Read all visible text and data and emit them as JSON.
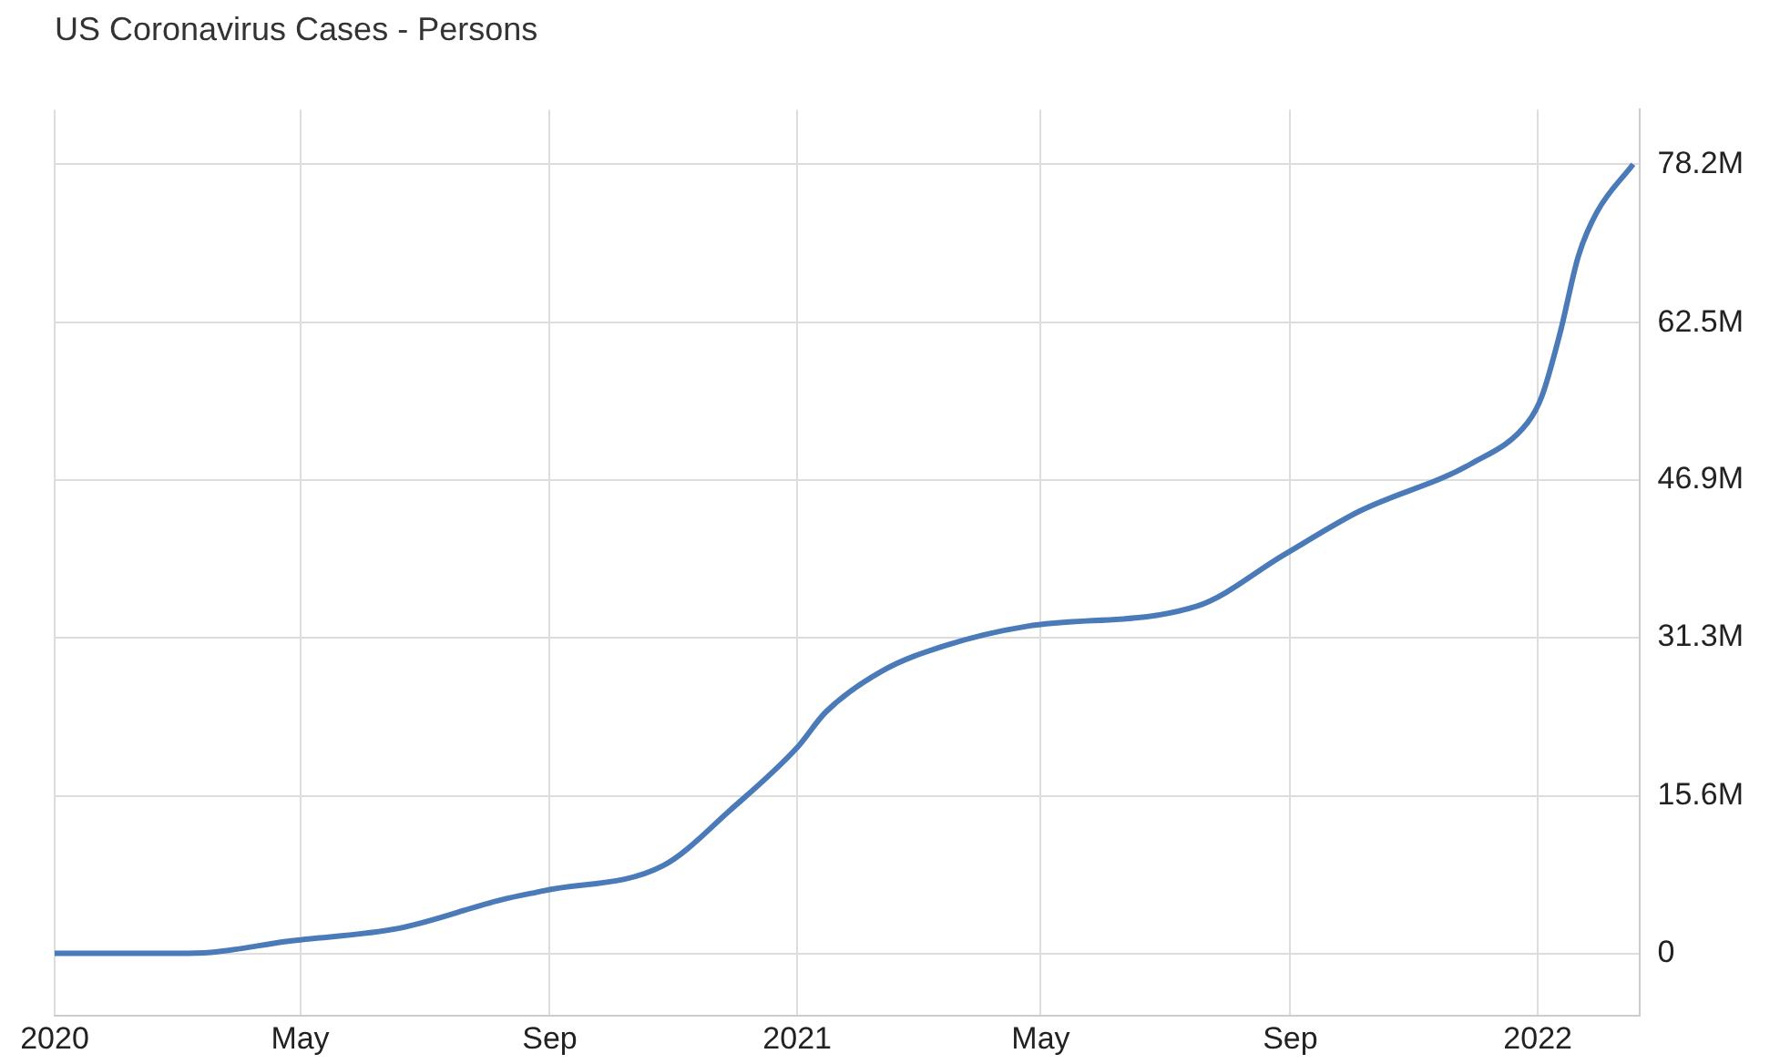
{
  "chart_data": {
    "type": "line",
    "title": "US Coronavirus Cases - Persons",
    "x": [
      "2020-01-01",
      "2020-03-01",
      "2020-03-18",
      "2020-04-25",
      "2020-06-19",
      "2020-08-08",
      "2020-08-29",
      "2020-10-27",
      "2020-11-29",
      "2021-01-01",
      "2021-01-15",
      "2021-02-12",
      "2021-03-15",
      "2021-04-24",
      "2021-07-17",
      "2021-08-29",
      "2021-10-05",
      "2021-11-29",
      "2021-12-27",
      "2022-01-03",
      "2022-01-12",
      "2022-01-21",
      "2022-01-30",
      "2022-02-17"
    ],
    "series": [
      {
        "color": "#4a7ab8",
        "values": [
          0,
          0,
          0.1,
          1.2,
          2.5,
          5.3,
          6.2,
          8.7,
          14.2,
          20.4,
          23.9,
          28.0,
          30.5,
          32.4,
          34.4,
          39.5,
          43.8,
          48.5,
          52.6,
          55.2,
          61.5,
          69.1,
          73.4,
          78.2
        ]
      }
    ],
    "xlim": [
      "2020-01-01",
      "2022-02-20"
    ],
    "xticks": [
      {
        "value": "2020-01-01",
        "label": "2020"
      },
      {
        "value": "2020-05-01",
        "label": "May"
      },
      {
        "value": "2020-09-01",
        "label": "Sep"
      },
      {
        "value": "2021-01-01",
        "label": "2021"
      },
      {
        "value": "2021-05-01",
        "label": "May"
      },
      {
        "value": "2021-09-01",
        "label": "Sep"
      },
      {
        "value": "2022-01-01",
        "label": "2022"
      }
    ],
    "ylim": [
      -6.2,
      83.6
    ],
    "yticks": [
      0,
      {
        "value": 15.6,
        "label": "15.6M"
      },
      {
        "value": 31.3,
        "label": "31.3M"
      },
      {
        "value": 46.9,
        "label": "46.9M"
      },
      {
        "value": 62.5,
        "label": "62.5M"
      },
      {
        "value": 78.2,
        "label": "78.2M"
      }
    ],
    "grid": true,
    "legend": false,
    "marker": "none",
    "line_style": "solid"
  }
}
